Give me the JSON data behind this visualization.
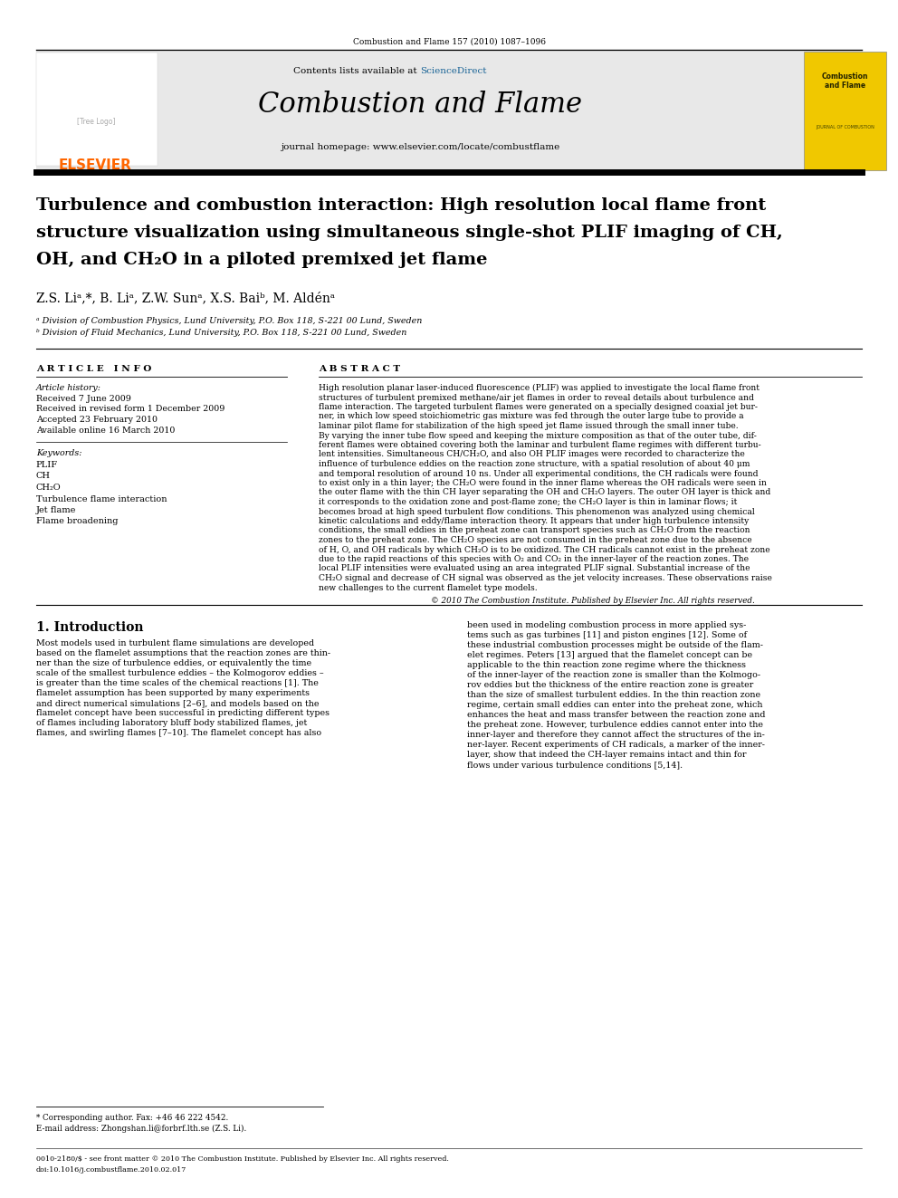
{
  "page_width": 9.92,
  "page_height": 13.23,
  "background_color": "#ffffff",
  "top_citation": "Combustion and Flame 157 (2010) 1087–1096",
  "header_bg": "#e8e8e8",
  "journal_name": "Combustion and Flame",
  "journal_homepage": "journal homepage: www.elsevier.com/locate/combustflame",
  "elsevier_color": "#ff6600",
  "title_line1": "Turbulence and combustion interaction: High resolution local flame front",
  "title_line2": "structure visualization using simultaneous single-shot PLIF imaging of CH,",
  "title_line3": "OH, and CH₂O in a piloted premixed jet flame",
  "authors": "Z.S. Liᵃ,*, B. Liᵃ, Z.W. Sunᵃ, X.S. Baiᵇ, M. Aldénᵃ",
  "affil_a": "ᵃ Division of Combustion Physics, Lund University, P.O. Box 118, S-221 00 Lund, Sweden",
  "affil_b": "ᵇ Division of Fluid Mechanics, Lund University, P.O. Box 118, S-221 00 Lund, Sweden",
  "article_info_header": "A R T I C L E   I N F O",
  "abstract_header": "A B S T R A C T",
  "article_history_label": "Article history:",
  "received": "Received 7 June 2009",
  "revised": "Received in revised form 1 December 2009",
  "accepted": "Accepted 23 February 2010",
  "available": "Available online 16 March 2010",
  "keywords_label": "Keywords:",
  "keywords": [
    "PLIF",
    "CH",
    "CH₂O",
    "Turbulence flame interaction",
    "Jet flame",
    "Flame broadening"
  ],
  "copyright": "© 2010 The Combustion Institute. Published by Elsevier Inc. All rights reserved.",
  "intro_header": "1. Introduction",
  "footnote_star": "* Corresponding author. Fax: +46 46 222 4542.",
  "footnote_email": "E-mail address: Zhongshan.li@forbrf.lth.se (Z.S. Li).",
  "footer_issn": "0010-2180/$ - see front matter © 2010 The Combustion Institute. Published by Elsevier Inc. All rights reserved.",
  "footer_doi": "doi:10.1016/j.combustflame.2010.02.017",
  "abstract_lines": [
    "High resolution planar laser-induced fluorescence (PLIF) was applied to investigate the local flame front",
    "structures of turbulent premixed methane/air jet flames in order to reveal details about turbulence and",
    "flame interaction. The targeted turbulent flames were generated on a specially designed coaxial jet bur-",
    "ner, in which low speed stoichiometric gas mixture was fed through the outer large tube to provide a",
    "laminar pilot flame for stabilization of the high speed jet flame issued through the small inner tube.",
    "By varying the inner tube flow speed and keeping the mixture composition as that of the outer tube, dif-",
    "ferent flames were obtained covering both the laminar and turbulent flame regimes with different turbu-",
    "lent intensities. Simultaneous CH/CH₂O, and also OH PLIF images were recorded to characterize the",
    "influence of turbulence eddies on the reaction zone structure, with a spatial resolution of about 40 μm",
    "and temporal resolution of around 10 ns. Under all experimental conditions, the CH radicals were found",
    "to exist only in a thin layer; the CH₂O were found in the inner flame whereas the OH radicals were seen in",
    "the outer flame with the thin CH layer separating the OH and CH₂O layers. The outer OH layer is thick and",
    "it corresponds to the oxidation zone and post-flame zone; the CH₂O layer is thin in laminar flows; it",
    "becomes broad at high speed turbulent flow conditions. This phenomenon was analyzed using chemical",
    "kinetic calculations and eddy/flame interaction theory. It appears that under high turbulence intensity",
    "conditions, the small eddies in the preheat zone can transport species such as CH₂O from the reaction",
    "zones to the preheat zone. The CH₂O species are not consumed in the preheat zone due to the absence",
    "of H, O, and OH radicals by which CH₂O is to be oxidized. The CH radicals cannot exist in the preheat zone",
    "due to the rapid reactions of this species with O₂ and CO₂ in the inner-layer of the reaction zones. The",
    "local PLIF intensities were evaluated using an area integrated PLIF signal. Substantial increase of the",
    "CH₂O signal and decrease of CH signal was observed as the jet velocity increases. These observations raise",
    "new challenges to the current flamelet type models."
  ],
  "intro_left_lines": [
    "Most models used in turbulent flame simulations are developed",
    "based on the flamelet assumptions that the reaction zones are thin-",
    "ner than the size of turbulence eddies, or equivalently the time",
    "scale of the smallest turbulence eddies – the Kolmogorov eddies –",
    "is greater than the time scales of the chemical reactions [1]. The",
    "flamelet assumption has been supported by many experiments",
    "and direct numerical simulations [2–6], and models based on the",
    "flamelet concept have been successful in predicting different types",
    "of flames including laboratory bluff body stabilized flames, jet",
    "flames, and swirling flames [7–10]. The flamelet concept has also"
  ],
  "intro_right_lines": [
    "been used in modeling combustion process in more applied sys-",
    "tems such as gas turbines [11] and piston engines [12]. Some of",
    "these industrial combustion processes might be outside of the flam-",
    "elet regimes. Peters [13] argued that the flamelet concept can be",
    "applicable to the thin reaction zone regime where the thickness",
    "of the inner-layer of the reaction zone is smaller than the Kolmogo-",
    "rov eddies but the thickness of the entire reaction zone is greater",
    "than the size of smallest turbulent eddies. In the thin reaction zone",
    "regime, certain small eddies can enter into the preheat zone, which",
    "enhances the heat and mass transfer between the reaction zone and",
    "the preheat zone. However, turbulence eddies cannot enter into the",
    "inner-layer and therefore they cannot affect the structures of the in-",
    "ner-layer. Recent experiments of CH radicals, a marker of the inner-",
    "layer, show that indeed the CH-layer remains intact and thin for",
    "flows under various turbulence conditions [5,14]."
  ]
}
